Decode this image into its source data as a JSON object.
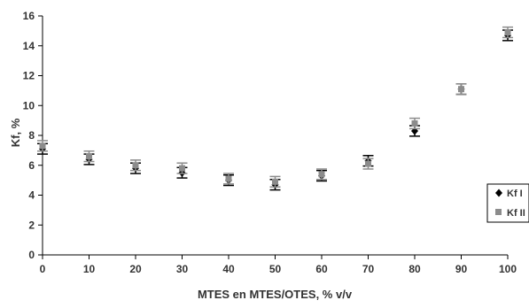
{
  "chart_data": {
    "type": "scatter",
    "title": "",
    "xlabel": "MTES en MTES/OTES, % v/v",
    "ylabel": "Kf, %",
    "xlim": [
      0,
      100
    ],
    "ylim": [
      0,
      16
    ],
    "x_ticks": [
      "0",
      "10",
      "20",
      "30",
      "40",
      "50",
      "60",
      "70",
      "80",
      "90",
      "100"
    ],
    "y_ticks": [
      "0",
      "2",
      "4",
      "6",
      "8",
      "10",
      "12",
      "14",
      "16"
    ],
    "grid": false,
    "legend_position": "right",
    "error_bar_half_width": 0.35,
    "series": [
      {
        "name": "Kf I",
        "marker": "diamond",
        "color": "#000000",
        "x": [
          0,
          10,
          20,
          30,
          40,
          50,
          60,
          70,
          80,
          90,
          100
        ],
        "y": [
          7.1,
          6.4,
          5.8,
          5.5,
          5.0,
          4.7,
          5.3,
          6.3,
          8.3,
          11.1,
          14.7
        ]
      },
      {
        "name": "Kf II",
        "marker": "square",
        "color": "#8c8c8c",
        "x": [
          0,
          10,
          20,
          30,
          40,
          50,
          60,
          70,
          80,
          90,
          100
        ],
        "y": [
          7.3,
          6.6,
          6.0,
          5.8,
          5.1,
          4.9,
          5.4,
          6.1,
          8.8,
          11.1,
          14.9
        ]
      }
    ]
  }
}
